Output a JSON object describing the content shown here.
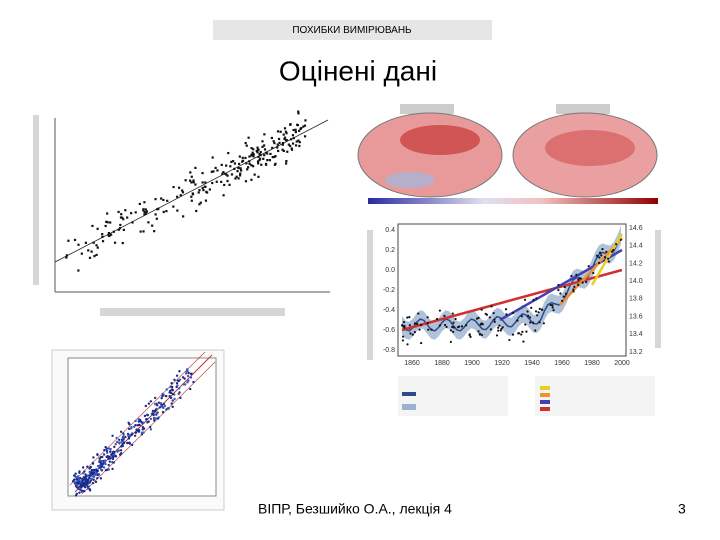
{
  "header": {
    "section": "ПОХИБКИ ВИМІРЮВАНЬ",
    "title": "Оцінені дані"
  },
  "climate_chart": {
    "x_ticks": [
      "1860",
      "1880",
      "1900",
      "1920",
      "1940",
      "1960",
      "1980",
      "2000"
    ],
    "left_ticks": [
      "0.4",
      "0.2",
      "0.0",
      "-0.2",
      "-0.4",
      "-0.6",
      "-0.8"
    ],
    "right_ticks": [
      "14.6",
      "14.4",
      "14.2",
      "14.0",
      "13.8",
      "13.6",
      "13.4",
      "13.2"
    ]
  },
  "footer": {
    "author": "ВІПР, Безшийко О.А., лекція 4",
    "page": "3"
  }
}
